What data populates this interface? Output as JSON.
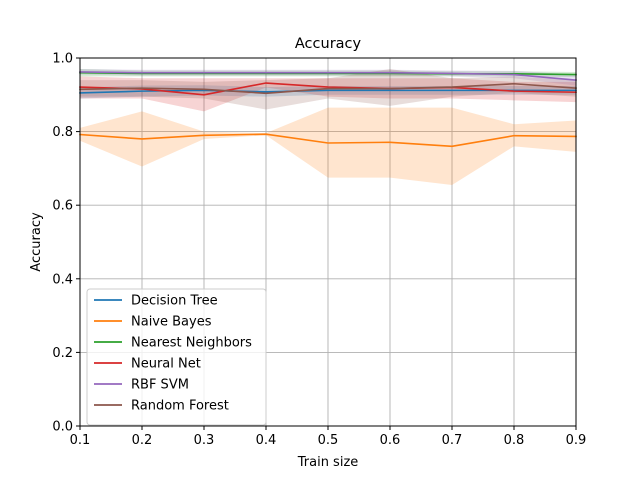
{
  "chart_data": {
    "type": "line",
    "title": "Accuracy",
    "xlabel": "Train size",
    "ylabel": "Accuracy",
    "xlim": [
      0.1,
      0.9
    ],
    "ylim": [
      0.0,
      1.0
    ],
    "x": [
      0.1,
      0.2,
      0.3,
      0.4,
      0.5,
      0.6,
      0.7,
      0.8,
      0.9
    ],
    "xticks": [
      "0.1",
      "0.2",
      "0.3",
      "0.4",
      "0.5",
      "0.6",
      "0.7",
      "0.8",
      "0.9"
    ],
    "yticks": [
      "0.0",
      "0.2",
      "0.4",
      "0.6",
      "0.8",
      "1.0"
    ],
    "grid": true,
    "legend_position": "lower-left",
    "series": [
      {
        "name": "Decision Tree",
        "color": "#1f77b4",
        "values": [
          0.905,
          0.91,
          0.912,
          0.908,
          0.912,
          0.912,
          0.912,
          0.912,
          0.912
        ],
        "lower": [
          0.89,
          0.895,
          0.898,
          0.895,
          0.9,
          0.9,
          0.9,
          0.9,
          0.9
        ],
        "upper": [
          0.92,
          0.925,
          0.926,
          0.921,
          0.924,
          0.924,
          0.924,
          0.924,
          0.924
        ]
      },
      {
        "name": "Naive Bayes",
        "color": "#ff7f0e",
        "values": [
          0.792,
          0.78,
          0.79,
          0.793,
          0.769,
          0.771,
          0.76,
          0.789,
          0.787
        ],
        "lower": [
          0.775,
          0.705,
          0.78,
          0.79,
          0.675,
          0.675,
          0.655,
          0.76,
          0.745
        ],
        "upper": [
          0.81,
          0.855,
          0.8,
          0.796,
          0.865,
          0.865,
          0.865,
          0.82,
          0.83
        ]
      },
      {
        "name": "Nearest Neighbors",
        "color": "#2ca02c",
        "values": [
          0.96,
          0.958,
          0.958,
          0.958,
          0.958,
          0.958,
          0.957,
          0.957,
          0.955
        ],
        "lower": [
          0.95,
          0.95,
          0.95,
          0.95,
          0.95,
          0.95,
          0.95,
          0.95,
          0.948
        ],
        "upper": [
          0.97,
          0.966,
          0.966,
          0.966,
          0.966,
          0.966,
          0.964,
          0.964,
          0.962
        ]
      },
      {
        "name": "Neural Net",
        "color": "#d62728",
        "values": [
          0.921,
          0.916,
          0.9,
          0.932,
          0.921,
          0.917,
          0.92,
          0.91,
          0.907
        ],
        "lower": [
          0.89,
          0.89,
          0.855,
          0.92,
          0.895,
          0.89,
          0.89,
          0.885,
          0.88
        ],
        "upper": [
          0.95,
          0.945,
          0.945,
          0.945,
          0.945,
          0.945,
          0.945,
          0.935,
          0.935
        ]
      },
      {
        "name": "RBF SVM",
        "color": "#9467bd",
        "values": [
          0.962,
          0.96,
          0.96,
          0.96,
          0.96,
          0.96,
          0.958,
          0.955,
          0.94
        ],
        "lower": [
          0.955,
          0.952,
          0.952,
          0.952,
          0.952,
          0.952,
          0.95,
          0.945,
          0.925
        ],
        "upper": [
          0.97,
          0.968,
          0.968,
          0.968,
          0.968,
          0.968,
          0.966,
          0.965,
          0.955
        ]
      },
      {
        "name": "Random Forest",
        "color": "#8c564b",
        "values": [
          0.915,
          0.918,
          0.915,
          0.904,
          0.917,
          0.917,
          0.921,
          0.93,
          0.918
        ],
        "lower": [
          0.895,
          0.895,
          0.89,
          0.86,
          0.89,
          0.87,
          0.895,
          0.905,
          0.895
        ],
        "upper": [
          0.94,
          0.94,
          0.935,
          0.94,
          0.945,
          0.97,
          0.945,
          0.95,
          0.94
        ]
      }
    ]
  }
}
